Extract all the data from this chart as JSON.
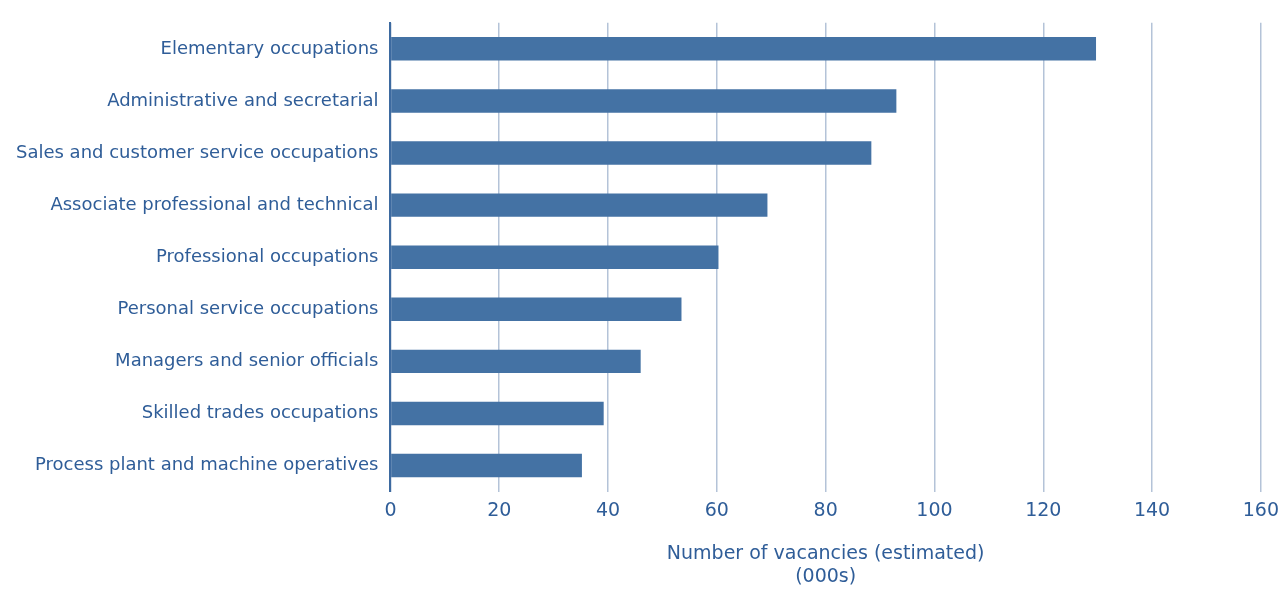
{
  "chart_data": {
    "type": "bar",
    "orientation": "horizontal",
    "categories": [
      "Elementary occupations",
      "Administrative and secretarial",
      "Sales and customer service occupations",
      "Associate professional and technical",
      "Professional occupations",
      "Personal service occupations",
      "Managers and senior officials",
      "Skilled trades occupations",
      "Process plant and machine operatives"
    ],
    "values": [
      129.7,
      93,
      88.4,
      69.3,
      60.3,
      53.5,
      46,
      39.2,
      35.2
    ],
    "color": "#4472a4",
    "xlabel": "Number of vacancies (estimated)\n(000s)",
    "xlim": [
      0,
      160
    ],
    "xticks": [
      0,
      20,
      40,
      60,
      80,
      100,
      120,
      140,
      160
    ],
    "grid": "x",
    "legend": false
  }
}
